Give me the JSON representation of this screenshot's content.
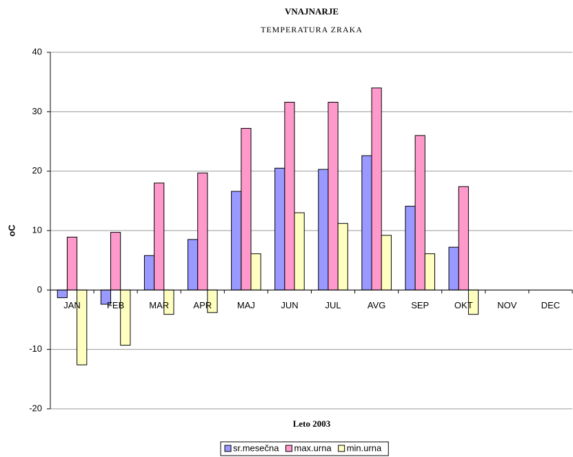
{
  "chart_data": {
    "type": "bar",
    "title": "VNAJNARJE",
    "subtitle": "TEMPERATURA ZRAKA",
    "x_label": "Leto 2003",
    "y_label": "oC",
    "categories": [
      "JAN",
      "FEB",
      "MAR",
      "APR",
      "MAJ",
      "JUN",
      "JUL",
      "AVG",
      "SEP",
      "OKT",
      "NOV",
      "DEC"
    ],
    "series": [
      {
        "name": "sr.mesečna",
        "color": "#9999ff",
        "values": [
          -1.3,
          -2.4,
          5.8,
          8.5,
          16.6,
          20.5,
          20.3,
          22.6,
          14.1,
          7.2,
          null,
          null
        ]
      },
      {
        "name": "max.urna",
        "color": "#ff99cc",
        "values": [
          8.9,
          9.7,
          18.0,
          19.7,
          27.2,
          31.6,
          31.6,
          34.0,
          26.0,
          17.4,
          null,
          null
        ]
      },
      {
        "name": "min.urna",
        "color": "#ffffc0",
        "values": [
          -12.6,
          -9.3,
          -4.1,
          -3.8,
          6.1,
          13.0,
          11.2,
          9.2,
          6.1,
          -4.1,
          null,
          null
        ]
      }
    ],
    "ylim": [
      -20,
      40
    ],
    "yticks": [
      -20,
      -10,
      0,
      10,
      20,
      30,
      40
    ],
    "grid": true,
    "legend": "bottom"
  }
}
